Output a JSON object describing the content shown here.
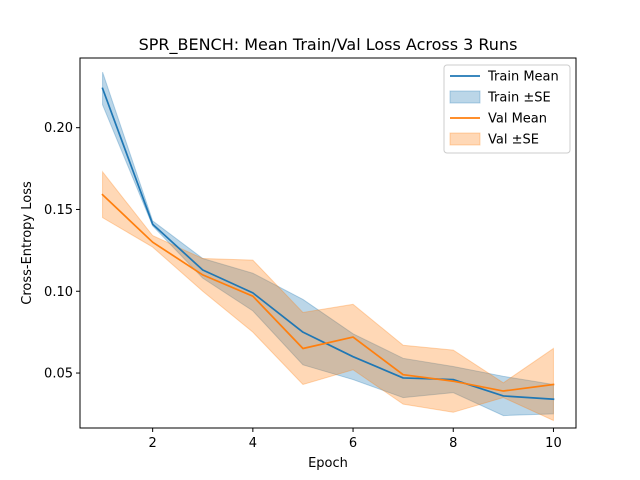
{
  "chart_data": {
    "type": "line",
    "title": "SPR_BENCH: Mean Train/Val Loss Across 3 Runs",
    "xlabel": "Epoch",
    "ylabel": "Cross-Entropy Loss",
    "x": [
      1,
      2,
      3,
      4,
      5,
      6,
      7,
      8,
      9,
      10
    ],
    "xlim": [
      0.55,
      10.45
    ],
    "ylim": [
      0.0164,
      0.2426
    ],
    "xticks": [
      2,
      4,
      6,
      8,
      10
    ],
    "yticks": [
      0.05,
      0.1,
      0.15,
      0.2
    ],
    "ytick_labels": [
      "0.05",
      "0.10",
      "0.15",
      "0.20"
    ],
    "xtick_labels": [
      "2",
      "4",
      "6",
      "8",
      "10"
    ],
    "grid": false,
    "legend_position": "top-right",
    "series": [
      {
        "name": "Train Mean",
        "kind": "line",
        "color": "#1f77b4",
        "values": [
          0.224,
          0.141,
          0.113,
          0.099,
          0.075,
          0.06,
          0.047,
          0.046,
          0.036,
          0.034
        ]
      },
      {
        "name": "Train ±SE",
        "kind": "band",
        "color": "#1f77b4",
        "lower": [
          0.214,
          0.14,
          0.108,
          0.088,
          0.055,
          0.046,
          0.035,
          0.038,
          0.024,
          0.025
        ],
        "upper": [
          0.234,
          0.143,
          0.12,
          0.111,
          0.095,
          0.074,
          0.059,
          0.054,
          0.048,
          0.043
        ]
      },
      {
        "name": "Val Mean",
        "kind": "line",
        "color": "#ff7f0e",
        "values": [
          0.159,
          0.13,
          0.11,
          0.097,
          0.065,
          0.072,
          0.049,
          0.045,
          0.039,
          0.043
        ]
      },
      {
        "name": "Val ±SE",
        "kind": "band",
        "color": "#ff7f0e",
        "lower": [
          0.145,
          0.127,
          0.1,
          0.075,
          0.043,
          0.052,
          0.031,
          0.026,
          0.035,
          0.021
        ],
        "upper": [
          0.173,
          0.134,
          0.12,
          0.119,
          0.087,
          0.092,
          0.067,
          0.064,
          0.044,
          0.065
        ]
      }
    ]
  }
}
